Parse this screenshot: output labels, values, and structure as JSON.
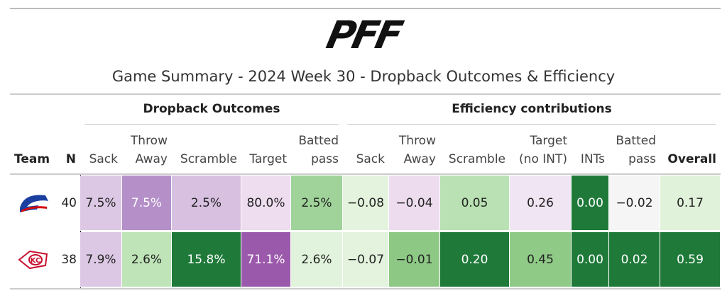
{
  "logo": "PFF",
  "title": "Game Summary - 2024 Week 30 - Dropback Outcomes & Efficiency",
  "table": {
    "spanners": [
      "Dropback Outcomes",
      "Efficiency contributions"
    ],
    "columns": [
      "Team",
      "N",
      "Sack",
      "Throw\nAway",
      "Scramble",
      "Target",
      "Batted\npass",
      "Sack",
      "Throw\nAway",
      "Scramble",
      "Target\n(no INT)",
      "INTs",
      "Batted\npass",
      "Overall"
    ],
    "rows": [
      [
        "40",
        "7.5%",
        "7.5%",
        "2.5%",
        "80.0%",
        "2.5%",
        "−0.08",
        "−0.04",
        "0.05",
        "0.26",
        "0.00",
        "−0.02",
        "0.17"
      ],
      [
        "38",
        "7.9%",
        "2.6%",
        "15.8%",
        "71.1%",
        "2.6%",
        "−0.07",
        "−0.01",
        "0.20",
        "0.45",
        "0.00",
        "0.02",
        "0.59"
      ]
    ],
    "fills": [
      [
        "#ffffff",
        "#dcc8e4",
        "#b48fc8",
        "#d8c0e1",
        "#eedcef",
        "#9fd399",
        "#e3f3dd",
        "#ecdcee",
        "#b9e1b3",
        "#f0e5f2",
        "#1f7a3a",
        "#f5f5f5",
        "#e0f2da"
      ],
      [
        "#ffffff",
        "#dcc8e4",
        "#bfe4b8",
        "#1f7a3a",
        "#9b59ab",
        "#e1f3dc",
        "#e3f3dd",
        "#8dc985",
        "#1f7a3a",
        "#8fca87",
        "#1f7a3a",
        "#1f7a3a",
        "#1f7a3a"
      ]
    ]
  }
}
